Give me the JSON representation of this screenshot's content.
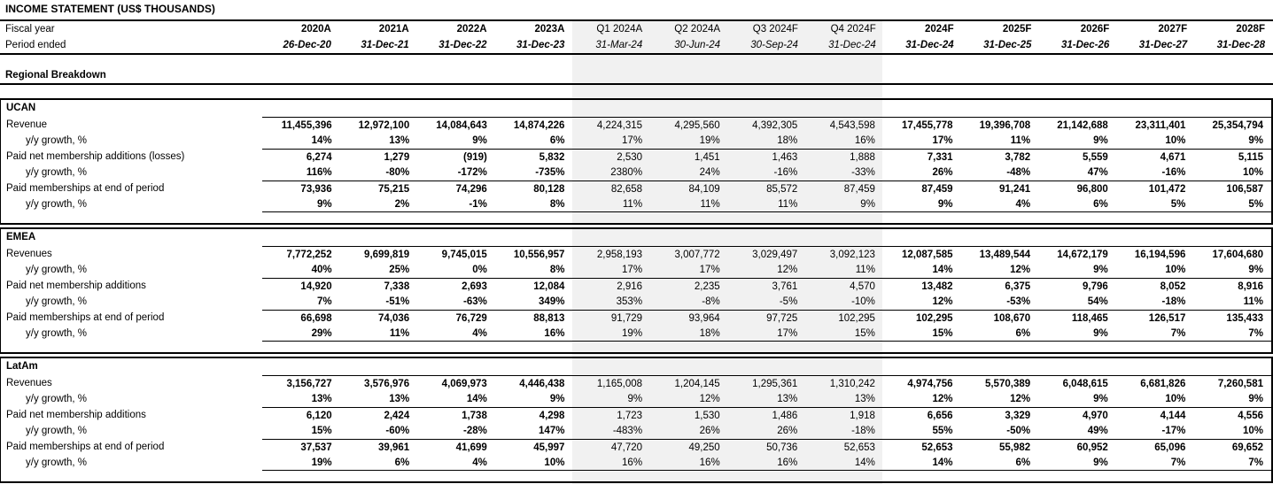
{
  "title": "INCOME STATEMENT (US$ THOUSANDS)",
  "section_heading": "Regional Breakdown",
  "colors": {
    "quarter_band": "#f1f1f1",
    "border": "#000000",
    "text": "#000000"
  },
  "header": {
    "fiscal_year_label": "Fiscal year",
    "period_ended_label": "Period ended",
    "columns": [
      {
        "fiscal_year": "2020A",
        "period_ended": "26-Dec-20",
        "quarterly": false
      },
      {
        "fiscal_year": "2021A",
        "period_ended": "31-Dec-21",
        "quarterly": false
      },
      {
        "fiscal_year": "2022A",
        "period_ended": "31-Dec-22",
        "quarterly": false
      },
      {
        "fiscal_year": "2023A",
        "period_ended": "31-Dec-23",
        "quarterly": false
      },
      {
        "fiscal_year": "Q1 2024A",
        "period_ended": "31-Mar-24",
        "quarterly": true
      },
      {
        "fiscal_year": "Q2 2024A",
        "period_ended": "30-Jun-24",
        "quarterly": true
      },
      {
        "fiscal_year": "Q3 2024F",
        "period_ended": "30-Sep-24",
        "quarterly": true
      },
      {
        "fiscal_year": "Q4 2024F",
        "period_ended": "31-Dec-24",
        "quarterly": true
      },
      {
        "fiscal_year": "2024F",
        "period_ended": "31-Dec-24",
        "quarterly": false
      },
      {
        "fiscal_year": "2025F",
        "period_ended": "31-Dec-25",
        "quarterly": false
      },
      {
        "fiscal_year": "2026F",
        "period_ended": "31-Dec-26",
        "quarterly": false
      },
      {
        "fiscal_year": "2027F",
        "period_ended": "31-Dec-27",
        "quarterly": false
      },
      {
        "fiscal_year": "2028F",
        "period_ended": "31-Dec-28",
        "quarterly": false
      }
    ]
  },
  "sections": [
    {
      "name": "UCAN",
      "rows": [
        {
          "label": "Revenue",
          "type": "value",
          "values": [
            "11,455,396",
            "12,972,100",
            "14,084,643",
            "14,874,226",
            "4,224,315",
            "4,295,560",
            "4,392,305",
            "4,543,598",
            "17,455,778",
            "19,396,708",
            "21,142,688",
            "23,311,401",
            "25,354,794"
          ]
        },
        {
          "label": "y/y growth, %",
          "type": "growth",
          "values": [
            "14%",
            "13%",
            "9%",
            "6%",
            "17%",
            "19%",
            "18%",
            "16%",
            "17%",
            "11%",
            "9%",
            "10%",
            "9%"
          ]
        },
        {
          "label": "Paid net membership additions (losses)",
          "type": "value",
          "values": [
            "6,274",
            "1,279",
            "(919)",
            "5,832",
            "2,530",
            "1,451",
            "1,463",
            "1,888",
            "7,331",
            "3,782",
            "5,559",
            "4,671",
            "5,115"
          ]
        },
        {
          "label": "y/y growth, %",
          "type": "growth",
          "values": [
            "116%",
            "-80%",
            "-172%",
            "-735%",
            "2380%",
            "24%",
            "-16%",
            "-33%",
            "26%",
            "-48%",
            "47%",
            "-16%",
            "10%"
          ]
        },
        {
          "label": "Paid memberships at end of period",
          "type": "value",
          "values": [
            "73,936",
            "75,215",
            "74,296",
            "80,128",
            "82,658",
            "84,109",
            "85,572",
            "87,459",
            "87,459",
            "91,241",
            "96,800",
            "101,472",
            "106,587"
          ]
        },
        {
          "label": "y/y growth, %",
          "type": "growth",
          "values": [
            "9%",
            "2%",
            "-1%",
            "8%",
            "11%",
            "11%",
            "11%",
            "9%",
            "9%",
            "4%",
            "6%",
            "5%",
            "5%"
          ]
        }
      ]
    },
    {
      "name": "EMEA",
      "rows": [
        {
          "label": "Revenues",
          "type": "value",
          "values": [
            "7,772,252",
            "9,699,819",
            "9,745,015",
            "10,556,957",
            "2,958,193",
            "3,007,772",
            "3,029,497",
            "3,092,123",
            "12,087,585",
            "13,489,544",
            "14,672,179",
            "16,194,596",
            "17,604,680"
          ]
        },
        {
          "label": "y/y growth, %",
          "type": "growth",
          "values": [
            "40%",
            "25%",
            "0%",
            "8%",
            "17%",
            "17%",
            "12%",
            "11%",
            "14%",
            "12%",
            "9%",
            "10%",
            "9%"
          ]
        },
        {
          "label": "Paid net membership additions",
          "type": "value",
          "values": [
            "14,920",
            "7,338",
            "2,693",
            "12,084",
            "2,916",
            "2,235",
            "3,761",
            "4,570",
            "13,482",
            "6,375",
            "9,796",
            "8,052",
            "8,916"
          ]
        },
        {
          "label": "y/y growth, %",
          "type": "growth",
          "values": [
            "7%",
            "-51%",
            "-63%",
            "349%",
            "353%",
            "-8%",
            "-5%",
            "-10%",
            "12%",
            "-53%",
            "54%",
            "-18%",
            "11%"
          ]
        },
        {
          "label": "Paid memberships at end of period",
          "type": "value",
          "values": [
            "66,698",
            "74,036",
            "76,729",
            "88,813",
            "91,729",
            "93,964",
            "97,725",
            "102,295",
            "102,295",
            "108,670",
            "118,465",
            "126,517",
            "135,433"
          ]
        },
        {
          "label": "y/y growth, %",
          "type": "growth",
          "values": [
            "29%",
            "11%",
            "4%",
            "16%",
            "19%",
            "18%",
            "17%",
            "15%",
            "15%",
            "6%",
            "9%",
            "7%",
            "7%"
          ]
        }
      ]
    },
    {
      "name": "LatAm",
      "rows": [
        {
          "label": "Revenues",
          "type": "value",
          "values": [
            "3,156,727",
            "3,576,976",
            "4,069,973",
            "4,446,438",
            "1,165,008",
            "1,204,145",
            "1,295,361",
            "1,310,242",
            "4,974,756",
            "5,570,389",
            "6,048,615",
            "6,681,826",
            "7,260,581"
          ]
        },
        {
          "label": "y/y growth, %",
          "type": "growth",
          "values": [
            "13%",
            "13%",
            "14%",
            "9%",
            "9%",
            "12%",
            "13%",
            "13%",
            "12%",
            "12%",
            "9%",
            "10%",
            "9%"
          ]
        },
        {
          "label": "Paid net membership additions",
          "type": "value",
          "values": [
            "6,120",
            "2,424",
            "1,738",
            "4,298",
            "1,723",
            "1,530",
            "1,486",
            "1,918",
            "6,656",
            "3,329",
            "4,970",
            "4,144",
            "4,556"
          ]
        },
        {
          "label": "y/y growth, %",
          "type": "growth",
          "values": [
            "15%",
            "-60%",
            "-28%",
            "147%",
            "-483%",
            "26%",
            "26%",
            "-18%",
            "55%",
            "-50%",
            "49%",
            "-17%",
            "10%"
          ]
        },
        {
          "label": "Paid memberships at end of period",
          "type": "value",
          "values": [
            "37,537",
            "39,961",
            "41,699",
            "45,997",
            "47,720",
            "49,250",
            "50,736",
            "52,653",
            "52,653",
            "55,982",
            "60,952",
            "65,096",
            "69,652"
          ]
        },
        {
          "label": "y/y growth, %",
          "type": "growth",
          "values": [
            "19%",
            "6%",
            "4%",
            "10%",
            "16%",
            "16%",
            "16%",
            "14%",
            "14%",
            "6%",
            "9%",
            "7%",
            "7%"
          ]
        }
      ]
    }
  ]
}
